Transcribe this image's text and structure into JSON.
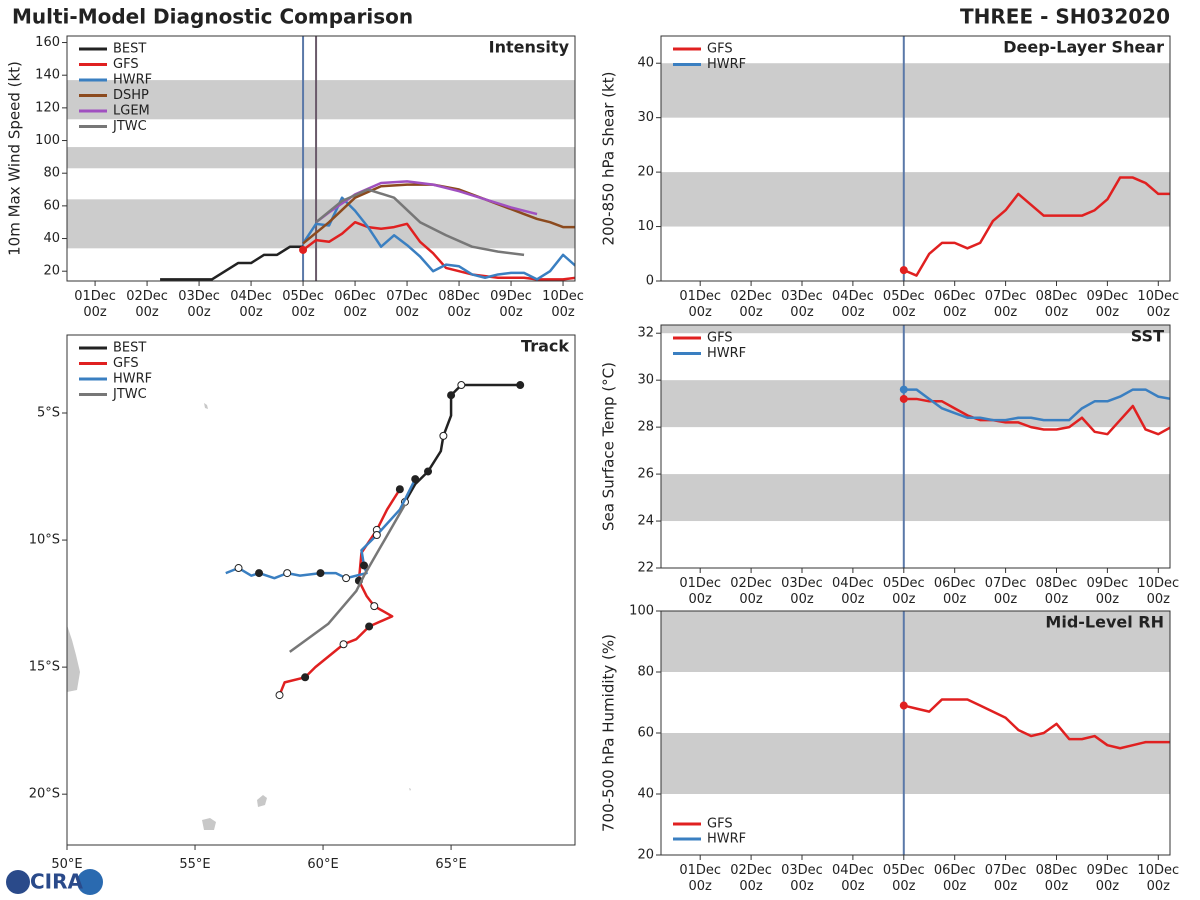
{
  "header": {
    "title": "Multi-Model Diagnostic Comparison",
    "storm": "THREE - SH032020",
    "logo": "CIRA"
  },
  "chart_data": [
    {
      "type": "line",
      "title": "Intensity",
      "ylabel": "10m Max Wind Speed (kt)",
      "xlim": [
        -0.54,
        9.23
      ],
      "xticks": [
        {
          "value": 0,
          "label": "01Dec\n00z"
        },
        {
          "value": 1,
          "label": "02Dec\n00z"
        },
        {
          "value": 2,
          "label": "03Dec\n00z"
        },
        {
          "value": 3,
          "label": "04Dec\n00z"
        },
        {
          "value": 4,
          "label": "05Dec\n00z"
        },
        {
          "value": 5,
          "label": "06Dec\n00z"
        },
        {
          "value": 6,
          "label": "07Dec\n00z"
        },
        {
          "value": 7,
          "label": "08Dec\n00z"
        },
        {
          "value": 8,
          "label": "09Dec\n00z"
        },
        {
          "value": 9,
          "label": "10Dec\n00z"
        }
      ],
      "ylim": [
        14,
        164
      ],
      "yticks": [
        20,
        40,
        60,
        80,
        100,
        120,
        140,
        160
      ],
      "bands": [
        [
          34,
          64
        ],
        [
          83,
          96
        ],
        [
          113,
          137
        ]
      ],
      "vlines": [
        {
          "value": 4,
          "color": "#5a78a8"
        },
        {
          "value": 4.25,
          "color": "#6a5a6a"
        }
      ],
      "legend": "upper left",
      "series": [
        {
          "name": "BEST",
          "color": "#222222",
          "x": [
            1.25,
            1.5,
            1.75,
            2,
            2.25,
            2.5,
            2.75,
            3,
            3.25,
            3.5,
            3.75,
            4
          ],
          "values": [
            15,
            15,
            15,
            15,
            15,
            20,
            25,
            25,
            30,
            30,
            35,
            35
          ]
        },
        {
          "name": "GFS",
          "color": "#e02020",
          "start_marker": true,
          "x": [
            4,
            4.25,
            4.5,
            4.75,
            5,
            5.25,
            5.5,
            5.75,
            6,
            6.25,
            6.5,
            6.75,
            7,
            7.25,
            7.5,
            7.75,
            8,
            8.25,
            8.5,
            8.75,
            9,
            9.25,
            9.5
          ],
          "values": [
            33,
            39,
            38,
            43,
            50,
            47,
            46,
            47,
            49,
            38,
            31,
            22,
            20,
            18,
            17,
            16,
            16,
            16,
            15,
            15,
            15,
            16,
            15
          ]
        },
        {
          "name": "HWRF",
          "color": "#3a7fc1",
          "x": [
            4,
            4.25,
            4.5,
            4.75,
            5,
            5.25,
            5.5,
            5.75,
            6,
            6.25,
            6.5,
            6.75,
            7,
            7.25,
            7.5,
            7.75,
            8,
            8.25,
            8.5,
            8.75,
            9,
            9.25
          ],
          "values": [
            37,
            49,
            48,
            65,
            57,
            47,
            35,
            42,
            36,
            29,
            20,
            24,
            23,
            18,
            16,
            18,
            19,
            19,
            15,
            20,
            30,
            23
          ]
        },
        {
          "name": "DSHP",
          "color": "#8c4a1e",
          "x": [
            4,
            4.5,
            5,
            5.5,
            6,
            6.5,
            7,
            7.5,
            8,
            8.25,
            8.5,
            8.75,
            9,
            9.5
          ],
          "values": [
            37,
            50,
            65,
            72,
            73,
            73,
            70,
            64,
            58,
            55,
            52,
            50,
            47,
            47
          ]
        },
        {
          "name": "LGEM",
          "color": "#a050c0",
          "x": [
            4.25,
            4.5,
            5,
            5.5,
            6,
            6.5,
            7,
            7.5,
            8,
            8.5
          ],
          "values": [
            50,
            56,
            67,
            74,
            75,
            73,
            69,
            64,
            59,
            55
          ]
        },
        {
          "name": "JTWC",
          "color": "#777777",
          "x": [
            4.25,
            4.75,
            5.25,
            5.75,
            6.25,
            6.75,
            7.25,
            7.75,
            8.25
          ],
          "values": [
            50,
            63,
            70,
            65,
            50,
            42,
            35,
            32,
            30
          ]
        }
      ]
    },
    {
      "type": "track",
      "title": "Track",
      "xlim": [
        50,
        69.84
      ],
      "xticks": [
        {
          "value": 50,
          "label": "50°E"
        },
        {
          "value": 55,
          "label": "55°E"
        },
        {
          "value": 60,
          "label": "60°E"
        },
        {
          "value": 65,
          "label": "65°E"
        }
      ],
      "ylim": [
        -22,
        -1.93
      ],
      "yticks": [
        {
          "value": -5,
          "label": "5°S"
        },
        {
          "value": -10,
          "label": "10°S"
        },
        {
          "value": -15,
          "label": "15°S"
        },
        {
          "value": -20,
          "label": "20°S"
        }
      ],
      "legend": "upper left",
      "series": [
        {
          "name": "BEST",
          "color": "#222222",
          "markers": true,
          "x": [
            67.7,
            66.5,
            65.4,
            65.2,
            65.0,
            65.0,
            64.7,
            64.6,
            64.1,
            63.6,
            63.2
          ],
          "values": [
            -3.9,
            -3.9,
            -3.9,
            -4.1,
            -4.3,
            -5.1,
            -5.9,
            -6.5,
            -7.3,
            -7.8,
            -8.5
          ]
        },
        {
          "name": "GFS",
          "color": "#e02020",
          "markers": true,
          "x": [
            63.0,
            62.5,
            62.1,
            61.5,
            61.4,
            61.7,
            62.0,
            62.7,
            61.8,
            61.3,
            60.8,
            59.7,
            59.3,
            58.5,
            58.3
          ],
          "values": [
            -8.0,
            -8.8,
            -9.6,
            -10.5,
            -11.6,
            -12.2,
            -12.6,
            -13.0,
            -13.4,
            -13.9,
            -14.1,
            -15.0,
            -15.4,
            -15.6,
            -16.1
          ]
        },
        {
          "name": "HWRF",
          "color": "#3a7fc1",
          "markers": true,
          "x": [
            63.6,
            63.0,
            62.1,
            61.5,
            61.6,
            61.7,
            60.9,
            60.5,
            59.9,
            59.1,
            58.6,
            58.1,
            57.5,
            57.2,
            56.7,
            56.2
          ],
          "values": [
            -7.6,
            -8.8,
            -9.8,
            -10.4,
            -11.0,
            -11.3,
            -11.5,
            -11.3,
            -11.3,
            -11.4,
            -11.3,
            -11.5,
            -11.3,
            -11.4,
            -11.1,
            -11.3
          ]
        },
        {
          "name": "JTWC",
          "color": "#777777",
          "x": [
            63.2,
            62.4,
            61.6,
            61.3,
            60.2,
            58.7
          ],
          "values": [
            -8.6,
            -10.0,
            -11.4,
            -12.0,
            -13.3,
            -14.4
          ]
        }
      ]
    },
    {
      "type": "line",
      "title": "Deep-Layer Shear",
      "ylabel": "200-850 hPa Shear (kt)",
      "xlim": [
        -0.77,
        9.23
      ],
      "xticks": [
        {
          "value": 0,
          "label": "01Dec\n00z"
        },
        {
          "value": 1,
          "label": "02Dec\n00z"
        },
        {
          "value": 2,
          "label": "03Dec\n00z"
        },
        {
          "value": 3,
          "label": "04Dec\n00z"
        },
        {
          "value": 4,
          "label": "05Dec\n00z"
        },
        {
          "value": 5,
          "label": "06Dec\n00z"
        },
        {
          "value": 6,
          "label": "07Dec\n00z"
        },
        {
          "value": 7,
          "label": "08Dec\n00z"
        },
        {
          "value": 8,
          "label": "09Dec\n00z"
        },
        {
          "value": 9,
          "label": "10Dec\n00z"
        }
      ],
      "ylim": [
        0,
        45
      ],
      "yticks": [
        0,
        10,
        20,
        30,
        40
      ],
      "bands": [
        [
          10,
          20
        ],
        [
          30,
          40
        ]
      ],
      "vlines": [
        {
          "value": 4,
          "color": "#5a78a8"
        }
      ],
      "legend": "upper left",
      "x": [
        4,
        4.25,
        4.5,
        4.75,
        5,
        5.25,
        5.5,
        5.75,
        6,
        6.25,
        6.5,
        6.75,
        7,
        7.25,
        7.5,
        7.75,
        8,
        8.25,
        8.5,
        8.75,
        9,
        9.25
      ],
      "series": [
        {
          "name": "GFS",
          "color": "#e02020",
          "start_marker": true,
          "values": [
            2,
            1,
            5,
            7,
            7,
            6,
            7,
            11,
            13,
            16,
            14,
            12,
            12,
            12,
            12,
            13,
            15,
            19,
            19,
            18,
            16,
            16
          ]
        },
        {
          "name": "HWRF",
          "color": "#3a7fc1",
          "values": [
            null,
            null,
            null,
            null,
            null,
            null,
            null,
            null,
            null,
            null,
            null,
            null,
            null,
            null,
            null,
            null,
            null,
            null,
            null,
            null,
            null,
            null
          ]
        }
      ]
    },
    {
      "type": "line",
      "title": "SST",
      "ylabel": "Sea Surface Temp (°C)",
      "xlim": [
        -0.77,
        9.23
      ],
      "xticks": [
        {
          "value": 0,
          "label": "01Dec\n00z"
        },
        {
          "value": 1,
          "label": "02Dec\n00z"
        },
        {
          "value": 2,
          "label": "03Dec\n00z"
        },
        {
          "value": 3,
          "label": "04Dec\n00z"
        },
        {
          "value": 4,
          "label": "05Dec\n00z"
        },
        {
          "value": 5,
          "label": "06Dec\n00z"
        },
        {
          "value": 6,
          "label": "07Dec\n00z"
        },
        {
          "value": 7,
          "label": "08Dec\n00z"
        },
        {
          "value": 8,
          "label": "09Dec\n00z"
        },
        {
          "value": 9,
          "label": "10Dec\n00z"
        }
      ],
      "ylim": [
        22,
        32.35
      ],
      "yticks": [
        22,
        24,
        26,
        28,
        30,
        32
      ],
      "bands": [
        [
          24,
          26
        ],
        [
          28,
          30
        ],
        [
          32,
          34
        ]
      ],
      "vlines": [
        {
          "value": 4,
          "color": "#5a78a8"
        }
      ],
      "legend": "upper left",
      "x": [
        4,
        4.25,
        4.5,
        4.75,
        5,
        5.25,
        5.5,
        5.75,
        6,
        6.25,
        6.5,
        6.75,
        7,
        7.25,
        7.5,
        7.75,
        8,
        8.25,
        8.5,
        8.75,
        9,
        9.25
      ],
      "series": [
        {
          "name": "GFS",
          "color": "#e02020",
          "start_marker": true,
          "values": [
            29.2,
            29.2,
            29.1,
            29.1,
            28.8,
            28.5,
            28.3,
            28.3,
            28.2,
            28.2,
            28.0,
            27.9,
            27.9,
            28.0,
            28.4,
            27.8,
            27.7,
            28.3,
            28.9,
            27.9,
            27.7,
            28.0
          ]
        },
        {
          "name": "HWRF",
          "color": "#3a7fc1",
          "start_marker": true,
          "values": [
            29.6,
            29.6,
            29.2,
            28.8,
            28.6,
            28.4,
            28.4,
            28.3,
            28.3,
            28.4,
            28.4,
            28.3,
            28.3,
            28.3,
            28.8,
            29.1,
            29.1,
            29.3,
            29.6,
            29.6,
            29.3,
            29.2
          ]
        }
      ]
    },
    {
      "type": "line",
      "title": "Mid-Level RH",
      "ylabel": "700-500 hPa Humidity (%)",
      "xlim": [
        -0.77,
        9.23
      ],
      "xticks": [
        {
          "value": 0,
          "label": "01Dec\n00z"
        },
        {
          "value": 1,
          "label": "02Dec\n00z"
        },
        {
          "value": 2,
          "label": "03Dec\n00z"
        },
        {
          "value": 3,
          "label": "04Dec\n00z"
        },
        {
          "value": 4,
          "label": "05Dec\n00z"
        },
        {
          "value": 5,
          "label": "06Dec\n00z"
        },
        {
          "value": 6,
          "label": "07Dec\n00z"
        },
        {
          "value": 7,
          "label": "08Dec\n00z"
        },
        {
          "value": 8,
          "label": "09Dec\n00z"
        },
        {
          "value": 9,
          "label": "10Dec\n00z"
        }
      ],
      "ylim": [
        20,
        100
      ],
      "yticks": [
        20,
        40,
        60,
        80,
        100
      ],
      "bands": [
        [
          40,
          60
        ],
        [
          80,
          100
        ]
      ],
      "vlines": [
        {
          "value": 4,
          "color": "#5a78a8"
        }
      ],
      "legend": "lower left",
      "x": [
        4,
        4.25,
        4.5,
        4.75,
        5,
        5.25,
        5.5,
        5.75,
        6,
        6.25,
        6.5,
        6.75,
        7,
        7.25,
        7.5,
        7.75,
        8,
        8.25,
        8.5,
        8.75,
        9,
        9.25
      ],
      "series": [
        {
          "name": "GFS",
          "color": "#e02020",
          "start_marker": true,
          "values": [
            69,
            68,
            67,
            71,
            71,
            71,
            69,
            67,
            65,
            61,
            59,
            60,
            63,
            58,
            58,
            59,
            56,
            55,
            56,
            57,
            57,
            57
          ]
        },
        {
          "name": "HWRF",
          "color": "#3a7fc1",
          "values": [
            null,
            null,
            null,
            null,
            null,
            null,
            null,
            null,
            null,
            null,
            null,
            null,
            null,
            null,
            null,
            null,
            null,
            null,
            null,
            null,
            null,
            null
          ]
        }
      ]
    }
  ]
}
